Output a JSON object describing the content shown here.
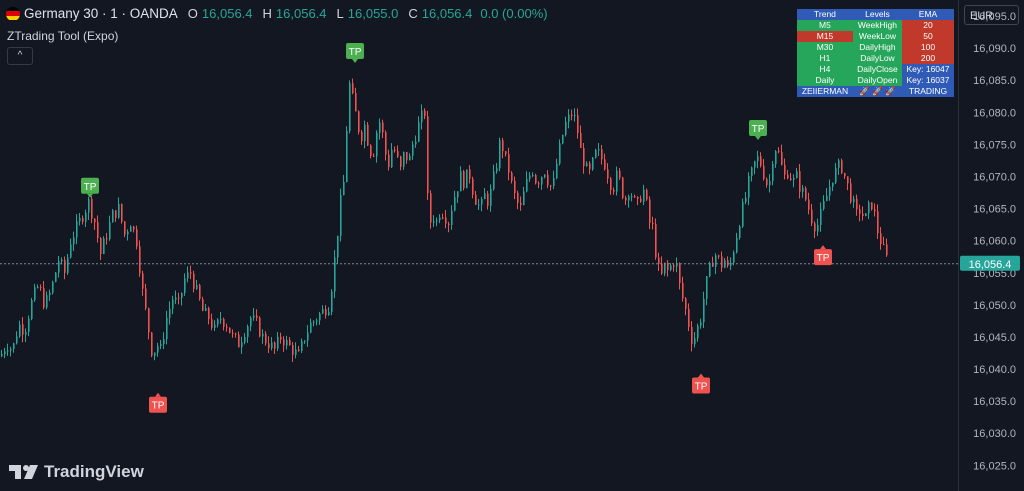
{
  "header": {
    "symbol": "Germany 30 · 1 · OANDA",
    "o_label": "O",
    "o": "16,056.4",
    "h_label": "H",
    "h": "16,056.4",
    "l_label": "L",
    "l": "16,055.0",
    "c_label": "C",
    "c": "16,056.4",
    "change": "0.0 (0.00%)"
  },
  "indicator": {
    "name": "ZTrading Tool (Expo)",
    "collapse_glyph": "^"
  },
  "currency": "EUR",
  "branding": {
    "logo_text": "TradingView"
  },
  "colors": {
    "bg": "#131722",
    "up": "#26a69a",
    "down": "#ef5350",
    "tp_up": "#4caf50",
    "tp_down": "#ef5350",
    "table_green": "#26a65b",
    "table_red": "#c0392b",
    "table_blue": "#2f5bb7"
  },
  "table": {
    "headers": [
      "Trend",
      "Levels",
      "EMA"
    ],
    "rows": [
      {
        "trend": "M5",
        "level": "WeekHigh",
        "ema": "20",
        "tc": "green",
        "lc": "green",
        "ec": "red"
      },
      {
        "trend": "M15",
        "level": "WeekLow",
        "ema": "50",
        "tc": "red",
        "lc": "green",
        "ec": "red"
      },
      {
        "trend": "M30",
        "level": "DailyHigh",
        "ema": "100",
        "tc": "green",
        "lc": "green",
        "ec": "red"
      },
      {
        "trend": "H1",
        "level": "DailyLow",
        "ema": "200",
        "tc": "green",
        "lc": "green",
        "ec": "red"
      },
      {
        "trend": "H4",
        "level": "DailyClose",
        "ema": "Key: 16047",
        "tc": "green",
        "lc": "green",
        "ec": "blue"
      },
      {
        "trend": "Daily",
        "level": "DailyOpen",
        "ema": "Key: 16037",
        "tc": "green",
        "lc": "green",
        "ec": "blue"
      }
    ],
    "footer": [
      "ZEIIERMAN",
      "🚀 🚀 🚀",
      "TRADING"
    ]
  },
  "chart_data": {
    "type": "candlestick",
    "title": "",
    "ylim": [
      16021,
      16097.5
    ],
    "y_ticks": [
      "16,095.0",
      "16,090.0",
      "16,085.0",
      "16,080.0",
      "16,075.0",
      "16,070.0",
      "16,065.0",
      "16,060.0",
      "16,055.0",
      "16,050.0",
      "16,045.0",
      "16,040.0",
      "16,035.0",
      "16,030.0",
      "16,025.0"
    ],
    "last_price": "16,056.4",
    "price_line": 16056.4,
    "close_path": [
      [
        0,
        16042
      ],
      [
        6,
        16044
      ],
      [
        12,
        16043
      ],
      [
        18,
        16047
      ],
      [
        24,
        16046
      ],
      [
        32,
        16051
      ],
      [
        38,
        16053
      ],
      [
        44,
        16050
      ],
      [
        50,
        16052
      ],
      [
        58,
        16057
      ],
      [
        64,
        16055
      ],
      [
        70,
        16060
      ],
      [
        76,
        16062
      ],
      [
        82,
        16064
      ],
      [
        88,
        16066
      ],
      [
        94,
        16063
      ],
      [
        100,
        16058
      ],
      [
        106,
        16061
      ],
      [
        112,
        16064
      ],
      [
        118,
        16065
      ],
      [
        124,
        16061
      ],
      [
        130,
        16063
      ],
      [
        136,
        16060
      ],
      [
        142,
        16052
      ],
      [
        148,
        16046
      ],
      [
        152,
        16042
      ],
      [
        156,
        16044
      ],
      [
        160,
        16043
      ],
      [
        166,
        16048
      ],
      [
        172,
        16051
      ],
      [
        178,
        16050
      ],
      [
        184,
        16054
      ],
      [
        190,
        16055
      ],
      [
        196,
        16052
      ],
      [
        202,
        16049
      ],
      [
        208,
        16048
      ],
      [
        214,
        16046
      ],
      [
        220,
        16048
      ],
      [
        226,
        16047
      ],
      [
        232,
        16045
      ],
      [
        238,
        16044
      ],
      [
        244,
        16046
      ],
      [
        250,
        16048
      ],
      [
        256,
        16047
      ],
      [
        262,
        16045
      ],
      [
        268,
        16044
      ],
      [
        274,
        16043
      ],
      [
        280,
        16045
      ],
      [
        286,
        16044
      ],
      [
        292,
        16043
      ],
      [
        298,
        16042
      ],
      [
        304,
        16045
      ],
      [
        310,
        16047
      ],
      [
        316,
        16048
      ],
      [
        322,
        16049
      ],
      [
        328,
        16050
      ],
      [
        332,
        16054
      ],
      [
        336,
        16060
      ],
      [
        340,
        16066
      ],
      [
        344,
        16070
      ],
      [
        348,
        16085
      ],
      [
        352,
        16082
      ],
      [
        356,
        16079
      ],
      [
        360,
        16076
      ],
      [
        364,
        16078
      ],
      [
        368,
        16075
      ],
      [
        372,
        16073
      ],
      [
        376,
        16077
      ],
      [
        380,
        16079
      ],
      [
        384,
        16074
      ],
      [
        388,
        16072
      ],
      [
        392,
        16075
      ],
      [
        396,
        16073
      ],
      [
        400,
        16071
      ],
      [
        404,
        16074
      ],
      [
        408,
        16072
      ],
      [
        412,
        16075
      ],
      [
        416,
        16077
      ],
      [
        420,
        16079
      ],
      [
        424,
        16080
      ],
      [
        428,
        16062
      ],
      [
        432,
        16064
      ],
      [
        436,
        16063
      ],
      [
        440,
        16065
      ],
      [
        444,
        16064
      ],
      [
        448,
        16063
      ],
      [
        452,
        16066
      ],
      [
        456,
        16068
      ],
      [
        460,
        16070
      ],
      [
        464,
        16069
      ],
      [
        468,
        16071
      ],
      [
        472,
        16068
      ],
      [
        476,
        16066
      ],
      [
        480,
        16065
      ],
      [
        484,
        16067
      ],
      [
        488,
        16066
      ],
      [
        492,
        16069
      ],
      [
        496,
        16072
      ],
      [
        500,
        16076
      ],
      [
        504,
        16073
      ],
      [
        508,
        16071
      ],
      [
        512,
        16068
      ],
      [
        516,
        16066
      ],
      [
        520,
        16065
      ],
      [
        524,
        16068
      ],
      [
        528,
        16070
      ],
      [
        532,
        16071
      ],
      [
        536,
        16069
      ],
      [
        540,
        16070
      ],
      [
        544,
        16071
      ],
      [
        548,
        16069
      ],
      [
        552,
        16068
      ],
      [
        556,
        16072
      ],
      [
        560,
        16075
      ],
      [
        564,
        16078
      ],
      [
        568,
        16079
      ],
      [
        572,
        16080
      ],
      [
        576,
        16078
      ],
      [
        580,
        16074
      ],
      [
        584,
        16072
      ],
      [
        588,
        16070
      ],
      [
        592,
        16072
      ],
      [
        596,
        16074
      ],
      [
        600,
        16073
      ],
      [
        604,
        16072
      ],
      [
        608,
        16070
      ],
      [
        612,
        16068
      ],
      [
        616,
        16070
      ],
      [
        620,
        16069
      ],
      [
        624,
        16066
      ],
      [
        628,
        16068
      ],
      [
        632,
        16067
      ],
      [
        636,
        16065
      ],
      [
        640,
        16067
      ],
      [
        644,
        16068
      ],
      [
        648,
        16063
      ],
      [
        652,
        16062
      ],
      [
        656,
        16057
      ],
      [
        660,
        16054
      ],
      [
        664,
        16056
      ],
      [
        668,
        16055
      ],
      [
        672,
        16057
      ],
      [
        676,
        16056
      ],
      [
        680,
        16052
      ],
      [
        684,
        16050
      ],
      [
        688,
        16047
      ],
      [
        692,
        16044
      ],
      [
        696,
        16046
      ],
      [
        700,
        16048
      ],
      [
        704,
        16052
      ],
      [
        708,
        16055
      ],
      [
        712,
        16057
      ],
      [
        716,
        16058
      ],
      [
        720,
        16056
      ],
      [
        724,
        16057
      ],
      [
        728,
        16055
      ],
      [
        732,
        16058
      ],
      [
        736,
        16061
      ],
      [
        740,
        16064
      ],
      [
        744,
        16066
      ],
      [
        748,
        16069
      ],
      [
        752,
        16071
      ],
      [
        756,
        16073
      ],
      [
        760,
        16072
      ],
      [
        764,
        16070
      ],
      [
        768,
        16068
      ],
      [
        772,
        16073
      ],
      [
        776,
        16075
      ],
      [
        780,
        16072
      ],
      [
        784,
        16070
      ],
      [
        788,
        16071
      ],
      [
        792,
        16069
      ],
      [
        796,
        16070
      ],
      [
        800,
        16068
      ],
      [
        804,
        16067
      ],
      [
        808,
        16065
      ],
      [
        812,
        16063
      ],
      [
        816,
        16062
      ],
      [
        820,
        16064
      ],
      [
        824,
        16066
      ],
      [
        828,
        16068
      ],
      [
        832,
        16070
      ],
      [
        836,
        16071
      ],
      [
        840,
        16072
      ],
      [
        844,
        16070
      ],
      [
        848,
        16068
      ],
      [
        852,
        16066
      ],
      [
        856,
        16064
      ],
      [
        860,
        16065
      ],
      [
        864,
        16063
      ],
      [
        868,
        16065
      ],
      [
        872,
        16066
      ],
      [
        876,
        16062
      ],
      [
        880,
        16060
      ],
      [
        884,
        16058
      ],
      [
        888,
        16056.4
      ]
    ],
    "tp_markers": [
      {
        "label": "TP",
        "x": 90,
        "price": 16067,
        "dir": "up"
      },
      {
        "label": "TP",
        "x": 355,
        "price": 16088,
        "dir": "up"
      },
      {
        "label": "TP",
        "x": 758,
        "price": 16076,
        "dir": "up"
      },
      {
        "label": "TP",
        "x": 158,
        "price": 16036,
        "dir": "down"
      },
      {
        "label": "TP",
        "x": 701,
        "price": 16039,
        "dir": "down"
      },
      {
        "label": "TP",
        "x": 823,
        "price": 16059,
        "dir": "down"
      }
    ]
  }
}
